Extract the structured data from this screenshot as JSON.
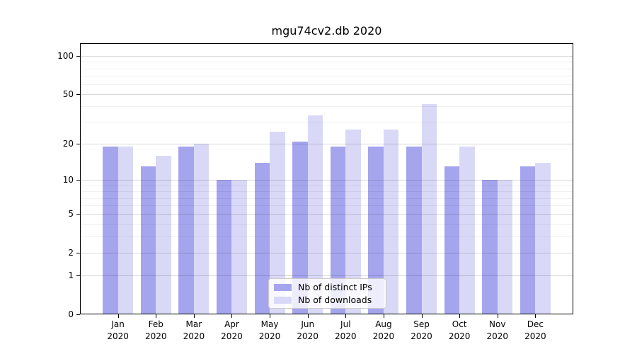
{
  "chart_data": {
    "type": "bar",
    "title": "mgu74cv2.db 2020",
    "categories": [
      "Jan 2020",
      "Feb 2020",
      "Mar 2020",
      "Apr 2020",
      "May 2020",
      "Jun 2020",
      "Jul 2020",
      "Aug 2020",
      "Sep 2020",
      "Oct 2020",
      "Nov 2020",
      "Dec 2020"
    ],
    "series": [
      {
        "name": "Nb of distinct IPs",
        "color": "#a5a5ee",
        "values": [
          19,
          13,
          19,
          10,
          14,
          21,
          19,
          19,
          19,
          13,
          10,
          13
        ]
      },
      {
        "name": "Nb of downloads",
        "color": "#d9d9f7",
        "values": [
          19,
          16,
          20,
          10,
          25,
          34,
          26,
          26,
          42,
          19,
          10,
          14
        ]
      }
    ],
    "xlabel": "",
    "ylabel": "",
    "yscale": "log1p",
    "ylim": [
      0,
      126
    ],
    "y_major_ticks": [
      0,
      1,
      2,
      5,
      10,
      20,
      50,
      100
    ],
    "y_minor_ticks": [
      3,
      4,
      6,
      7,
      8,
      9,
      30,
      40,
      60,
      70,
      80,
      90
    ],
    "grid": "on",
    "legend_position": "inside-bottom-center"
  },
  "colors": {
    "ips_bar": "#a5a5ee",
    "downloads_bar": "#d9d9f7",
    "axis": "#000000",
    "grid_major": "rgba(0,0,0,0.15)",
    "grid_minor": "rgba(0,0,0,0.055)",
    "legend_border": "#cccccc",
    "legend_background": "rgba(255,255,255,0.8)"
  }
}
